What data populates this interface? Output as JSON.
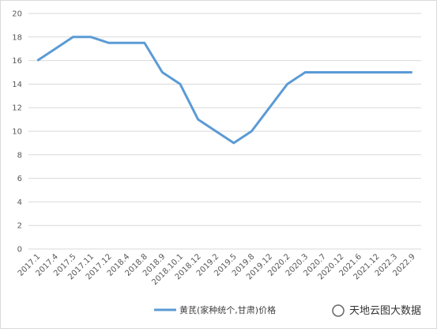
{
  "chart_data": {
    "type": "line",
    "categories": [
      "2017.1",
      "2017.4",
      "2017.5",
      "2017.11",
      "2017.12",
      "2018.4",
      "2018.8",
      "2018.9",
      "2018.10.1",
      "2018.12",
      "2019.2",
      "2019.5",
      "2019.8",
      "2019.12",
      "2020.2",
      "2020.3",
      "2020.7",
      "2020.12",
      "2021.6",
      "2021.12",
      "2022.3",
      "2022.9"
    ],
    "series": [
      {
        "name": "黄芪(家种统个,甘肃)价格",
        "color": "#5b9bd5",
        "values": [
          16,
          17,
          18,
          18,
          17.5,
          17.5,
          17.5,
          15,
          14,
          11,
          10,
          9,
          10,
          12,
          14,
          15,
          15,
          15,
          15,
          15,
          15,
          15
        ]
      }
    ],
    "ylim": [
      0,
      20
    ],
    "yticks": [
      0,
      2,
      4,
      6,
      8,
      10,
      12,
      14,
      16,
      18,
      20
    ],
    "grid": true,
    "legend": "bottom",
    "watermark": "天地云图大数据"
  }
}
